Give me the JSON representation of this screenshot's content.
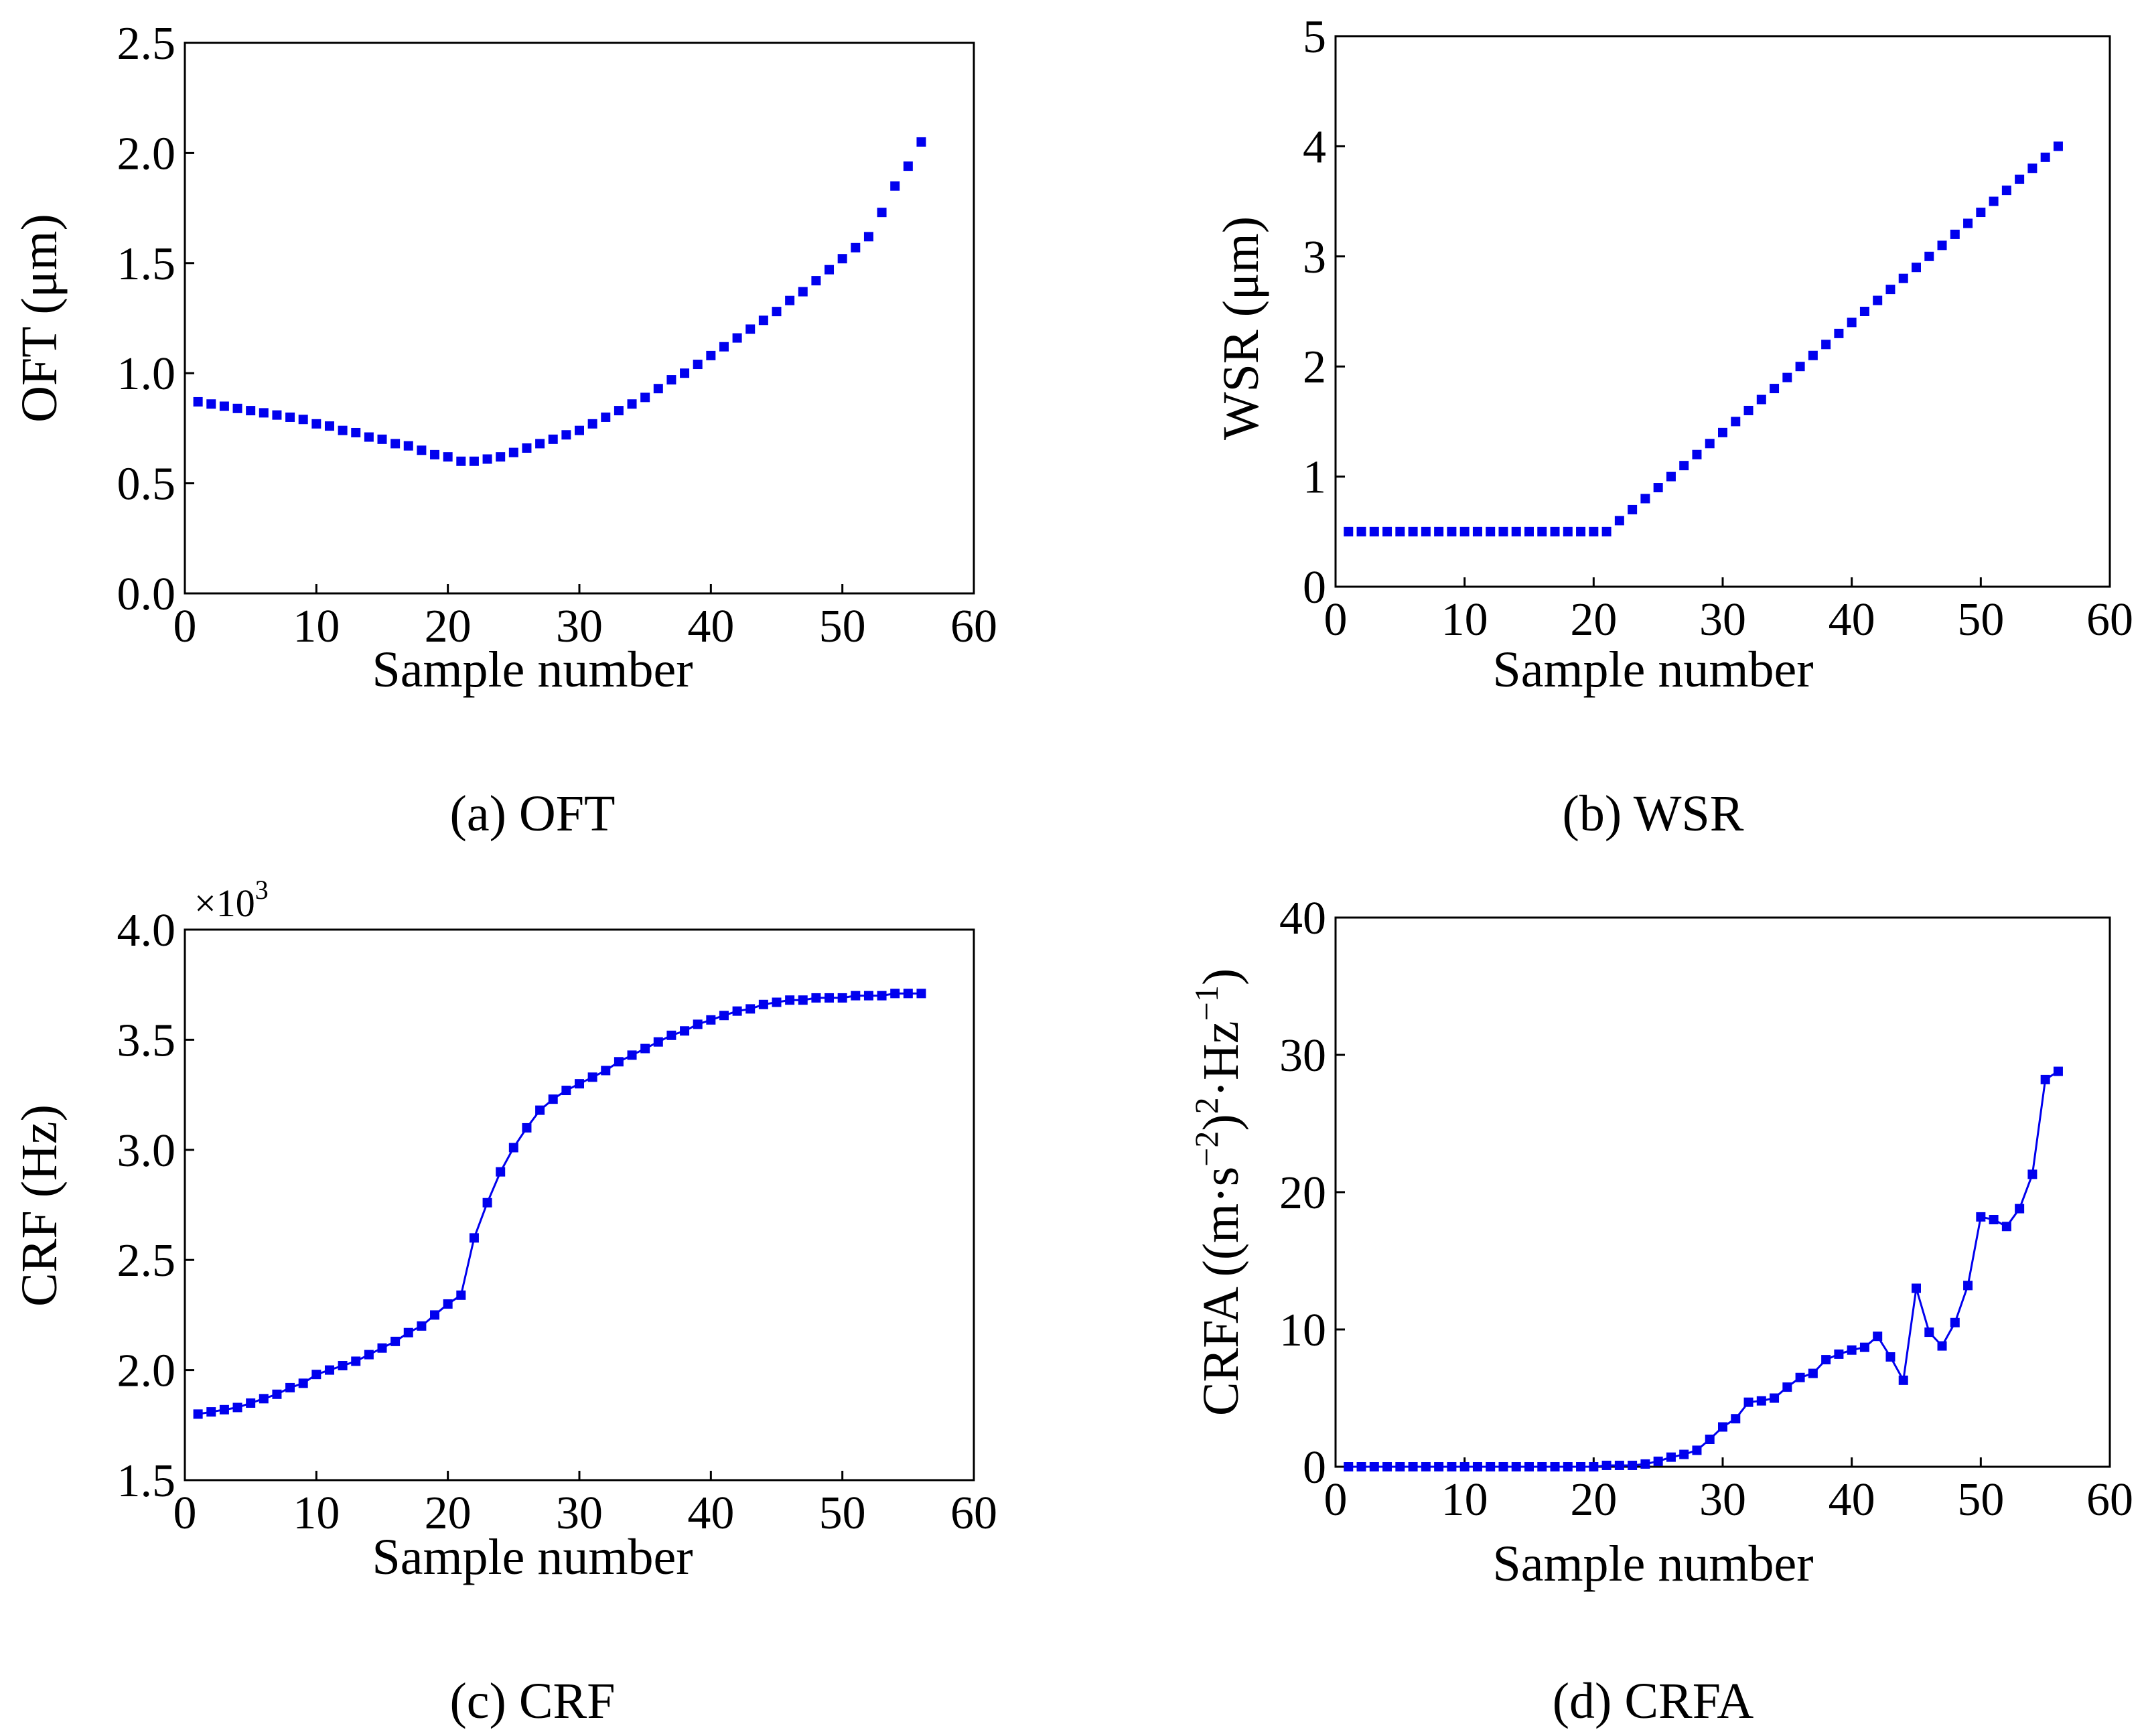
{
  "figure": {
    "marker_color": "#0000ee",
    "axis_color": "#000000"
  },
  "chart_data": [
    {
      "id": "a",
      "type": "line",
      "caption": "(a) OFT",
      "xlabel": "Sample number",
      "ylabel": "OFT (μm)",
      "xlim": [
        0,
        60
      ],
      "ylim": [
        0,
        2.5
      ],
      "xticks": [
        0,
        10,
        20,
        30,
        40,
        50,
        60
      ],
      "xtick_labels": [
        "0",
        "10",
        "20",
        "30",
        "40",
        "50",
        "60"
      ],
      "yticks": [
        0,
        0.5,
        1,
        1.5,
        2,
        2.5
      ],
      "ytick_labels": [
        "0.0",
        "0.5",
        "1.0",
        "1.5",
        "2.0",
        "2.5"
      ],
      "line": false,
      "series": [
        {
          "name": "OFT",
          "x": [
            1,
            2,
            3,
            4,
            5,
            6,
            7,
            8,
            9,
            10,
            11,
            12,
            13,
            14,
            15,
            16,
            17,
            18,
            19,
            20,
            21,
            22,
            23,
            24,
            25,
            26,
            27,
            28,
            29,
            30,
            31,
            32,
            33,
            34,
            35,
            36,
            37,
            38,
            39,
            40,
            41,
            42,
            43,
            44,
            45,
            46,
            47,
            48,
            49,
            50,
            51,
            52,
            53,
            54,
            55,
            56
          ],
          "y": [
            0.87,
            0.86,
            0.85,
            0.84,
            0.83,
            0.82,
            0.81,
            0.8,
            0.79,
            0.77,
            0.76,
            0.74,
            0.73,
            0.71,
            0.7,
            0.68,
            0.67,
            0.65,
            0.63,
            0.62,
            0.6,
            0.6,
            0.61,
            0.62,
            0.64,
            0.66,
            0.68,
            0.7,
            0.72,
            0.74,
            0.77,
            0.8,
            0.83,
            0.86,
            0.89,
            0.93,
            0.97,
            1.0,
            1.04,
            1.08,
            1.12,
            1.16,
            1.2,
            1.24,
            1.28,
            1.33,
            1.37,
            1.42,
            1.47,
            1.52,
            1.57,
            1.62,
            1.73,
            1.85,
            1.94,
            2.05
          ]
        }
      ]
    },
    {
      "id": "b",
      "type": "line",
      "caption": "(b) WSR",
      "xlabel": "Sample number",
      "ylabel": "WSR (μm)",
      "xlim": [
        0,
        60
      ],
      "ylim": [
        0,
        5
      ],
      "xticks": [
        0,
        10,
        20,
        30,
        40,
        50,
        60
      ],
      "xtick_labels": [
        "0",
        "10",
        "20",
        "30",
        "40",
        "50",
        "60"
      ],
      "yticks": [
        0,
        1,
        2,
        3,
        4,
        5
      ],
      "ytick_labels": [
        "0",
        "1",
        "2",
        "3",
        "4",
        "5"
      ],
      "line": false,
      "series": [
        {
          "name": "WSR",
          "x": [
            1,
            2,
            3,
            4,
            5,
            6,
            7,
            8,
            9,
            10,
            11,
            12,
            13,
            14,
            15,
            16,
            17,
            18,
            19,
            20,
            21,
            22,
            23,
            24,
            25,
            26,
            27,
            28,
            29,
            30,
            31,
            32,
            33,
            34,
            35,
            36,
            37,
            38,
            39,
            40,
            41,
            42,
            43,
            44,
            45,
            46,
            47,
            48,
            49,
            50,
            51,
            52,
            53,
            54,
            55,
            56
          ],
          "y": [
            0.5,
            0.5,
            0.5,
            0.5,
            0.5,
            0.5,
            0.5,
            0.5,
            0.5,
            0.5,
            0.5,
            0.5,
            0.5,
            0.5,
            0.5,
            0.5,
            0.5,
            0.5,
            0.5,
            0.5,
            0.5,
            0.6,
            0.7,
            0.8,
            0.9,
            1.0,
            1.1,
            1.2,
            1.3,
            1.4,
            1.5,
            1.6,
            1.7,
            1.8,
            1.9,
            2.0,
            2.1,
            2.2,
            2.3,
            2.4,
            2.5,
            2.6,
            2.7,
            2.8,
            2.9,
            3.0,
            3.1,
            3.2,
            3.3,
            3.4,
            3.5,
            3.6,
            3.7,
            3.8,
            3.9,
            4.0
          ]
        }
      ]
    },
    {
      "id": "c",
      "type": "line",
      "caption": "(c) CRF",
      "xlabel": "Sample number",
      "ylabel": "CRF (Hz)",
      "multiplier": "×10",
      "multiplier_exp": "3",
      "xlim": [
        0,
        60
      ],
      "ylim": [
        1.5,
        4.0
      ],
      "xticks": [
        0,
        10,
        20,
        30,
        40,
        50,
        60
      ],
      "xtick_labels": [
        "0",
        "10",
        "20",
        "30",
        "40",
        "50",
        "60"
      ],
      "yticks": [
        1.5,
        2,
        2.5,
        3,
        3.5,
        4
      ],
      "ytick_labels": [
        "1.5",
        "2.0",
        "2.5",
        "3.0",
        "3.5",
        "4.0"
      ],
      "line": true,
      "series": [
        {
          "name": "CRF",
          "x": [
            1,
            2,
            3,
            4,
            5,
            6,
            7,
            8,
            9,
            10,
            11,
            12,
            13,
            14,
            15,
            16,
            17,
            18,
            19,
            20,
            21,
            22,
            23,
            24,
            25,
            26,
            27,
            28,
            29,
            30,
            31,
            32,
            33,
            34,
            35,
            36,
            37,
            38,
            39,
            40,
            41,
            42,
            43,
            44,
            45,
            46,
            47,
            48,
            49,
            50,
            51,
            52,
            53,
            54,
            55,
            56
          ],
          "y": [
            1.8,
            1.81,
            1.82,
            1.83,
            1.85,
            1.87,
            1.89,
            1.92,
            1.94,
            1.98,
            2.0,
            2.02,
            2.04,
            2.07,
            2.1,
            2.13,
            2.17,
            2.2,
            2.25,
            2.3,
            2.34,
            2.6,
            2.76,
            2.9,
            3.01,
            3.1,
            3.18,
            3.23,
            3.27,
            3.3,
            3.33,
            3.36,
            3.4,
            3.43,
            3.46,
            3.49,
            3.52,
            3.54,
            3.57,
            3.59,
            3.61,
            3.63,
            3.64,
            3.66,
            3.67,
            3.68,
            3.68,
            3.69,
            3.69,
            3.69,
            3.7,
            3.7,
            3.7,
            3.71,
            3.71,
            3.71
          ]
        }
      ]
    },
    {
      "id": "d",
      "type": "line",
      "caption": "(d) CRFA",
      "xlabel": "Sample number",
      "ylabel": "CRFA ((m·s⁻²)²·Hz⁻¹)",
      "ylabel_parts": [
        "CRFA ((m·s",
        "−2",
        ")",
        "2",
        "·Hz",
        "−1",
        ")"
      ],
      "xlim": [
        0,
        60
      ],
      "ylim": [
        0,
        40
      ],
      "xticks": [
        0,
        10,
        20,
        30,
        40,
        50,
        60
      ],
      "xtick_labels": [
        "0",
        "10",
        "20",
        "30",
        "40",
        "50",
        "60"
      ],
      "yticks": [
        0,
        10,
        20,
        30,
        40
      ],
      "ytick_labels": [
        "0",
        "10",
        "20",
        "30",
        "40"
      ],
      "line": true,
      "series": [
        {
          "name": "CRFA",
          "x": [
            1,
            2,
            3,
            4,
            5,
            6,
            7,
            8,
            9,
            10,
            11,
            12,
            13,
            14,
            15,
            16,
            17,
            18,
            19,
            20,
            21,
            22,
            23,
            24,
            25,
            26,
            27,
            28,
            29,
            30,
            31,
            32,
            33,
            34,
            35,
            36,
            37,
            38,
            39,
            40,
            41,
            42,
            43,
            44,
            45,
            46,
            47,
            48,
            49,
            50,
            51,
            52,
            53,
            54,
            55,
            56
          ],
          "y": [
            0,
            0,
            0,
            0,
            0,
            0,
            0,
            0,
            0,
            0,
            0,
            0,
            0,
            0,
            0,
            0,
            0,
            0,
            0,
            0,
            0.1,
            0.1,
            0.1,
            0.2,
            0.4,
            0.7,
            0.9,
            1.2,
            2.0,
            2.9,
            3.5,
            4.7,
            4.8,
            5.0,
            5.8,
            6.5,
            6.8,
            7.8,
            8.2,
            8.5,
            8.7,
            9.5,
            8.0,
            6.3,
            13.0,
            9.8,
            8.8,
            10.5,
            13.2,
            18.2,
            18.0,
            17.5,
            18.8,
            21.3,
            28.2,
            28.8
          ]
        }
      ]
    }
  ]
}
